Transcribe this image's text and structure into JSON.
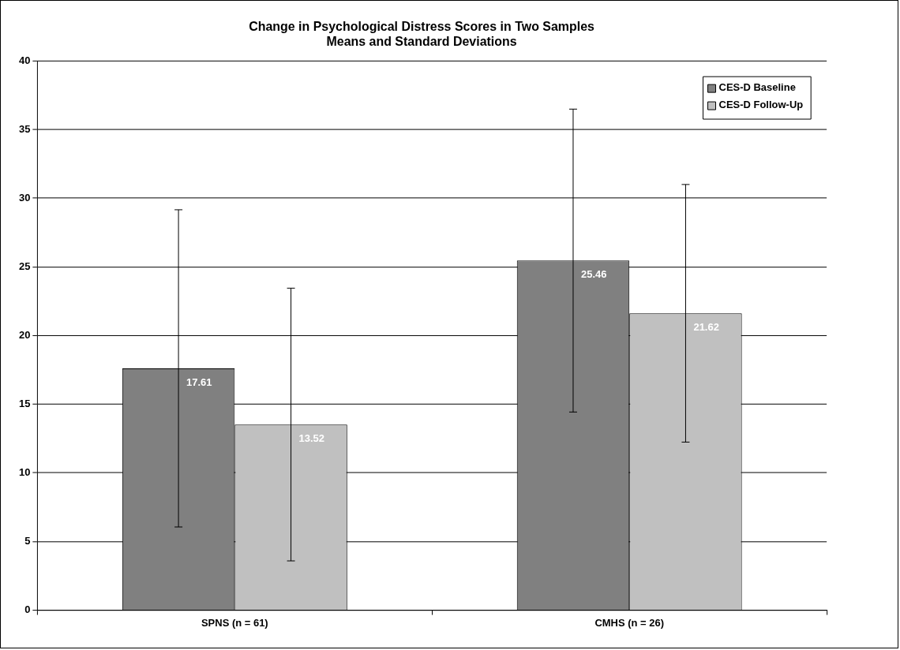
{
  "chart_data": {
    "type": "bar",
    "title": "Change in Psychological Distress Scores in Two Samples",
    "subtitle": "Means and Standard Deviations",
    "categories": [
      "SPNS (n = 61)",
      "CMHS (n = 26)"
    ],
    "series": [
      {
        "name": "CES-D Baseline",
        "color": "#808080",
        "values": [
          17.61,
          25.46
        ],
        "errors": [
          11.55,
          11.03
        ]
      },
      {
        "name": "CES-D Follow-Up",
        "color": "#c0c0c0",
        "values": [
          13.52,
          21.62
        ],
        "errors": [
          9.93,
          9.38
        ]
      }
    ],
    "ylim": [
      0,
      40
    ],
    "yticks": [
      0,
      5,
      10,
      15,
      20,
      25,
      30,
      35,
      40
    ],
    "grid": "y",
    "legend": "top right",
    "data_labels": true
  }
}
